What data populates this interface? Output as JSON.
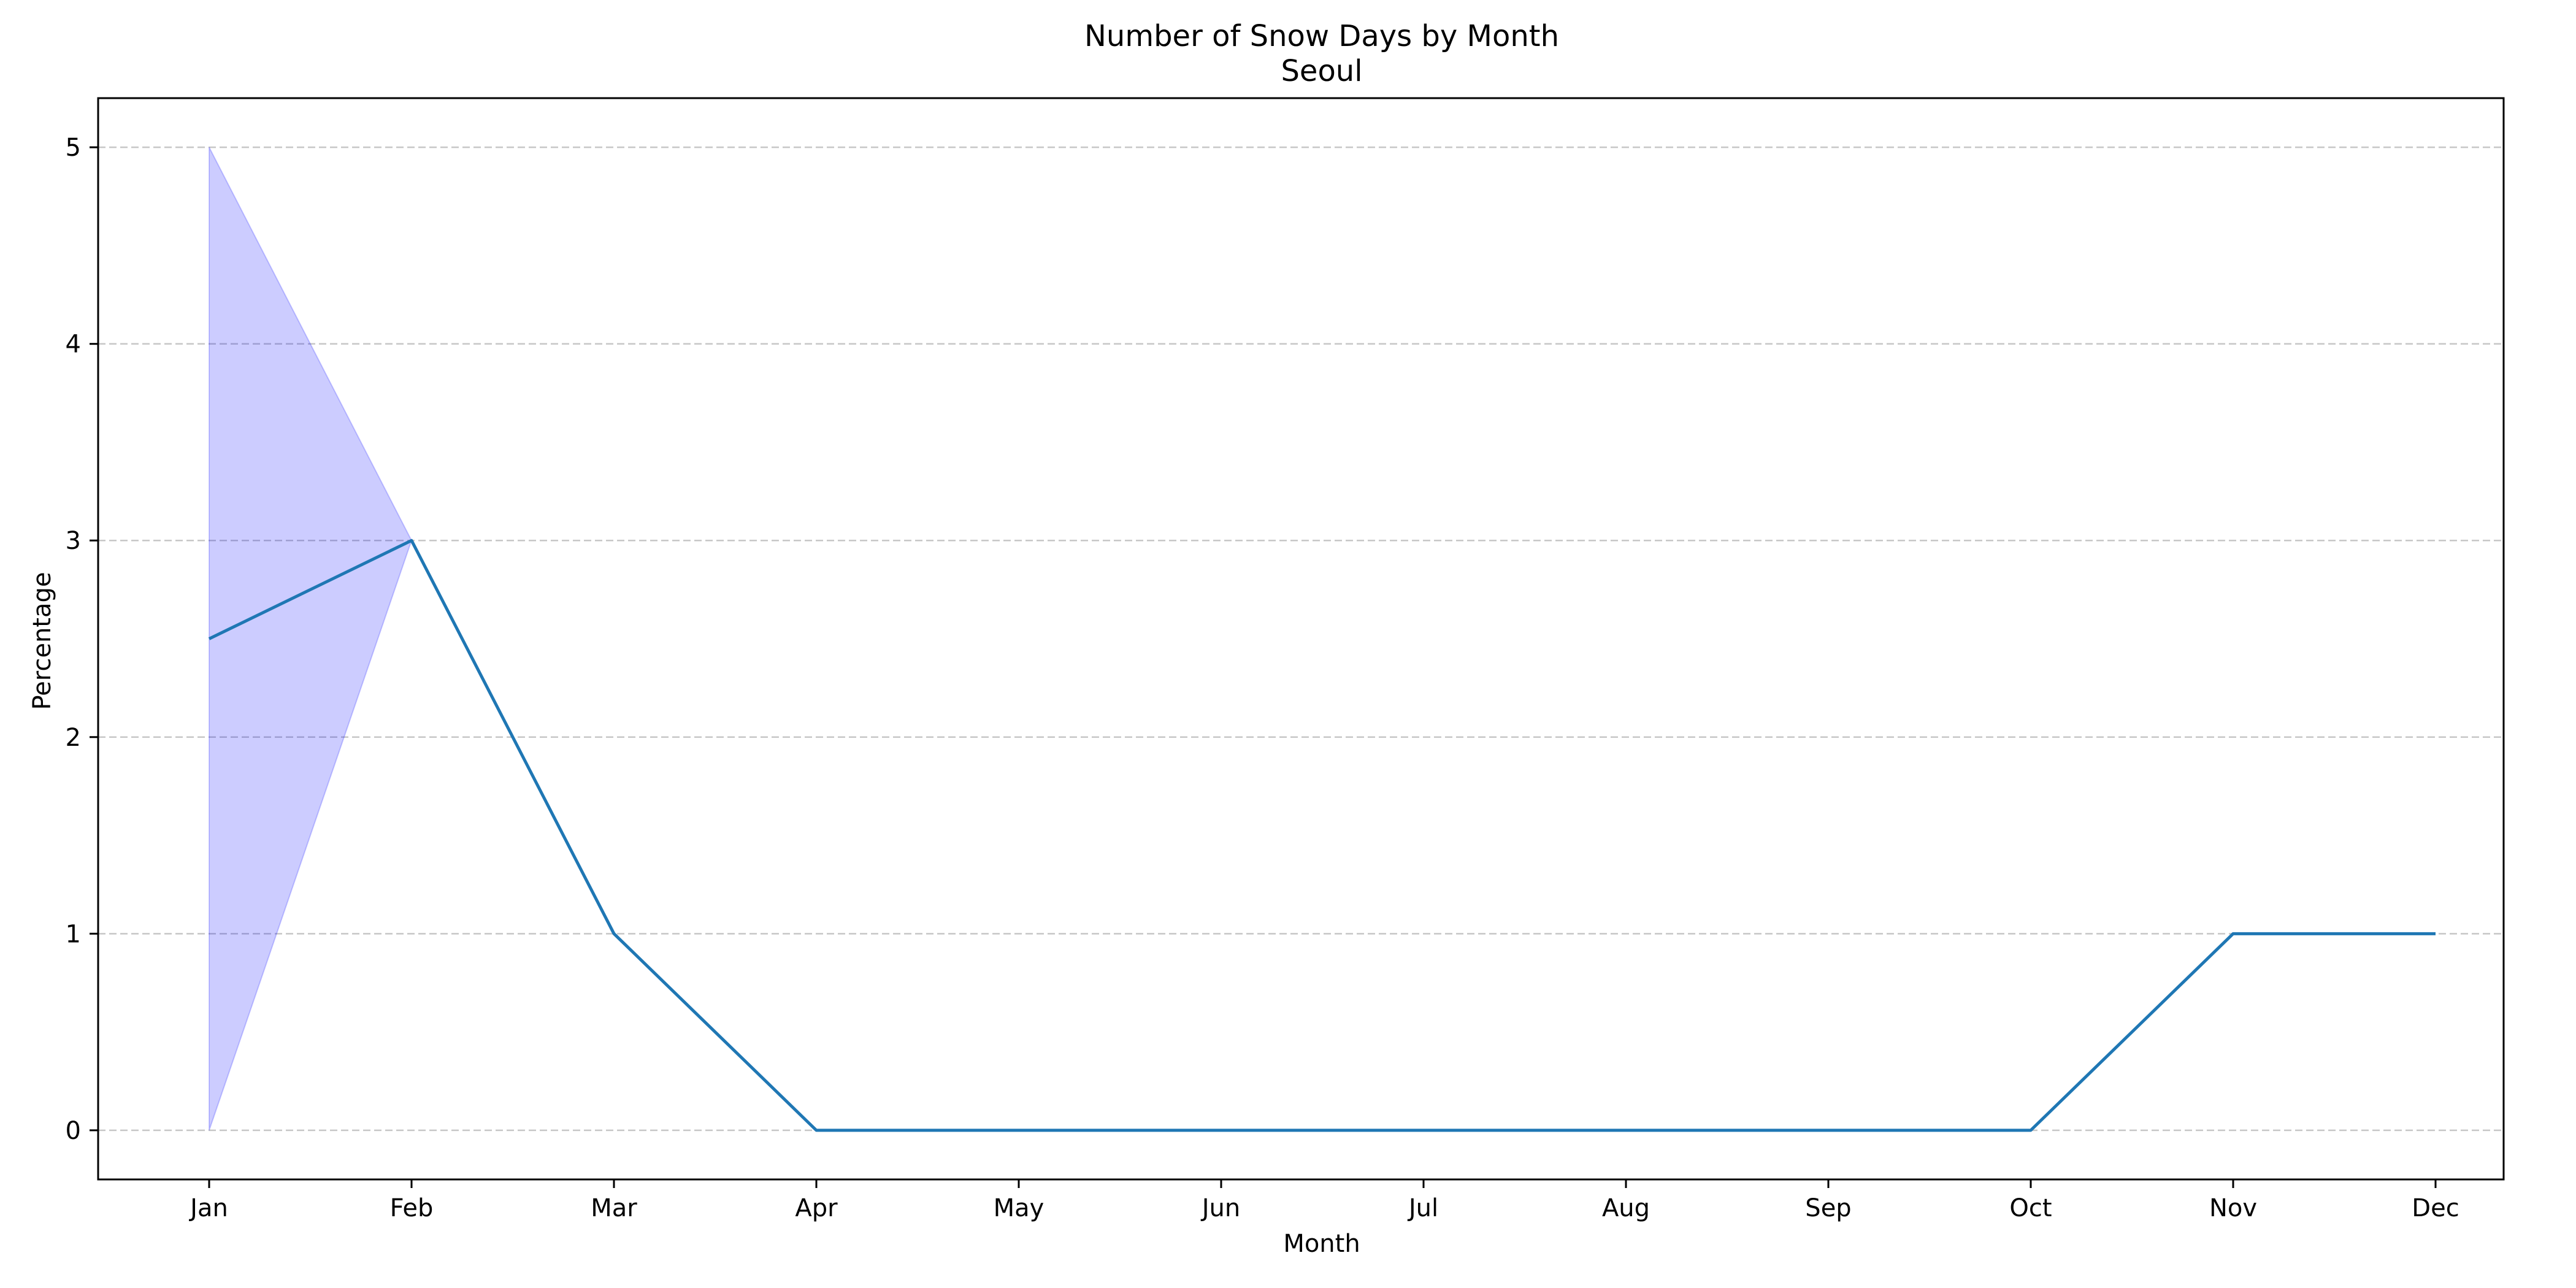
{
  "chart_data": {
    "type": "line",
    "title": "Number of Snow Days by Month",
    "subtitle": "Seoul",
    "xlabel": "Month",
    "ylabel": "Percentage",
    "categories": [
      "Jan",
      "Feb",
      "Mar",
      "Apr",
      "May",
      "Jun",
      "Jul",
      "Aug",
      "Sep",
      "Oct",
      "Nov",
      "Dec"
    ],
    "series": [
      {
        "values": [
          2.5,
          3,
          1,
          0,
          0,
          0,
          0,
          0,
          0,
          0,
          1,
          1
        ],
        "color": "#1f77b4"
      }
    ],
    "band": {
      "categories": [
        "Jan",
        "Feb"
      ],
      "lower": [
        0,
        3
      ],
      "upper": [
        5,
        3
      ],
      "color": "#0000ff",
      "alpha": 0.2
    },
    "yticks": [
      0,
      1,
      2,
      3,
      4,
      5
    ],
    "ylim": [
      -0.25,
      5.25
    ],
    "grid": "y-dashed",
    "legend": "none"
  }
}
